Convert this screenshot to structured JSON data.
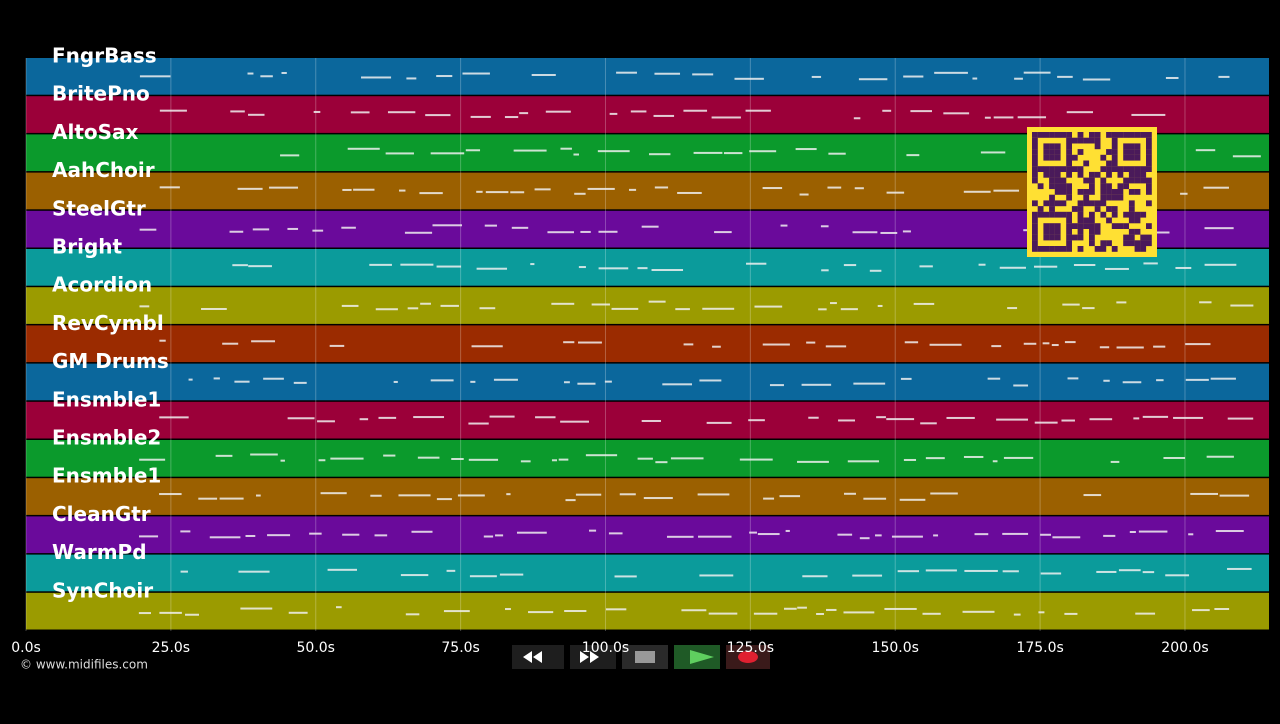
{
  "tracks": [
    {
      "name": "FngrBass",
      "color": "#0b679c"
    },
    {
      "name": "BritePno",
      "color": "#9b0039"
    },
    {
      "name": "AltoSax",
      "color": "#0b9a2c"
    },
    {
      "name": "AahChoir",
      "color": "#9b6000"
    },
    {
      "name": "SteelGtr",
      "color": "#6a0a9b"
    },
    {
      "name": "Bright",
      "color": "#0b9b9b"
    },
    {
      "name": "Acordion",
      "color": "#9b9b00"
    },
    {
      "name": "RevCymbl",
      "color": "#9b2b00"
    },
    {
      "name": "GM Drums",
      "color": "#0b679c"
    },
    {
      "name": "Ensmble1",
      "color": "#9b0039"
    },
    {
      "name": "Ensmble2",
      "color": "#0b9a2c"
    },
    {
      "name": "Ensmble1",
      "color": "#9b6000"
    },
    {
      "name": "CleanGtr",
      "color": "#6a0a9b"
    },
    {
      "name": "WarmPd",
      "color": "#0b9b9b"
    },
    {
      "name": "SynChoir",
      "color": "#9b9b00"
    }
  ],
  "axis": {
    "xlim": [
      0,
      214.5
    ],
    "xticks": [
      {
        "value": 0,
        "label": "0.0s"
      },
      {
        "value": 25,
        "label": "25.0s"
      },
      {
        "value": 50,
        "label": "50.0s"
      },
      {
        "value": 75,
        "label": "75.0s"
      },
      {
        "value": 100,
        "label": "100.0s"
      },
      {
        "value": 125,
        "label": "125.0s"
      },
      {
        "value": 150,
        "label": "150.0s"
      },
      {
        "value": 175,
        "label": "175.0s"
      },
      {
        "value": 200,
        "label": "200.0s"
      }
    ]
  },
  "footer": {
    "copyright": "© www.midifiles.com"
  }
}
